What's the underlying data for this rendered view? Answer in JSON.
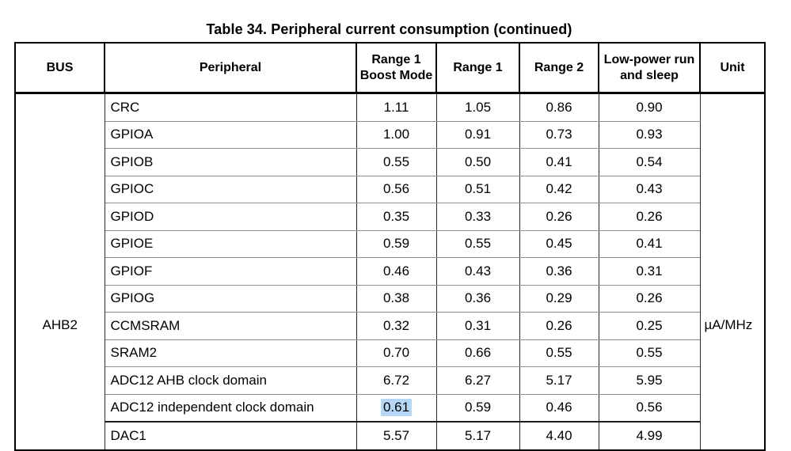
{
  "title": "Table 34. Peripheral current consumption (continued)",
  "table": {
    "headers": {
      "bus": "BUS",
      "peripheral": "Peripheral",
      "range1_boost": "Range 1 Boost Mode",
      "range1": "Range 1",
      "range2": "Range 2",
      "lowpower": "Low-power run and sleep",
      "unit": "Unit"
    },
    "bus": "AHB2",
    "unit": "µA/MHz",
    "selection_highlight_color": "#b5d6f7",
    "rows": [
      {
        "peripheral": "CRC",
        "range1_boost": "1.11",
        "range1": "1.05",
        "range2": "0.86",
        "lowpower": "0.90"
      },
      {
        "peripheral": "GPIOA",
        "range1_boost": "1.00",
        "range1": "0.91",
        "range2": "0.73",
        "lowpower": "0.93"
      },
      {
        "peripheral": "GPIOB",
        "range1_boost": "0.55",
        "range1": "0.50",
        "range2": "0.41",
        "lowpower": "0.54"
      },
      {
        "peripheral": "GPIOC",
        "range1_boost": "0.56",
        "range1": "0.51",
        "range2": "0.42",
        "lowpower": "0.43"
      },
      {
        "peripheral": "GPIOD",
        "range1_boost": "0.35",
        "range1": "0.33",
        "range2": "0.26",
        "lowpower": "0.26"
      },
      {
        "peripheral": "GPIOE",
        "range1_boost": "0.59",
        "range1": "0.55",
        "range2": "0.45",
        "lowpower": "0.41"
      },
      {
        "peripheral": "GPIOF",
        "range1_boost": "0.46",
        "range1": "0.43",
        "range2": "0.36",
        "lowpower": "0.31"
      },
      {
        "peripheral": "GPIOG",
        "range1_boost": "0.38",
        "range1": "0.36",
        "range2": "0.29",
        "lowpower": "0.26"
      },
      {
        "peripheral": "CCMSRAM",
        "range1_boost": "0.32",
        "range1": "0.31",
        "range2": "0.26",
        "lowpower": "0.25"
      },
      {
        "peripheral": "SRAM2",
        "range1_boost": "0.70",
        "range1": "0.66",
        "range2": "0.55",
        "lowpower": "0.55"
      },
      {
        "peripheral": "ADC12 AHB clock domain",
        "range1_boost": "6.72",
        "range1": "6.27",
        "range2": "5.17",
        "lowpower": "5.95"
      },
      {
        "peripheral": "ADC12 independent clock domain",
        "range1_boost": "0.61",
        "range1": "0.59",
        "range2": "0.46",
        "lowpower": "0.56",
        "highlighted_cell": "range1_boost"
      },
      {
        "peripheral": "DAC1",
        "range1_boost": "5.57",
        "range1": "5.17",
        "range2": "4.40",
        "lowpower": "4.99"
      }
    ]
  }
}
